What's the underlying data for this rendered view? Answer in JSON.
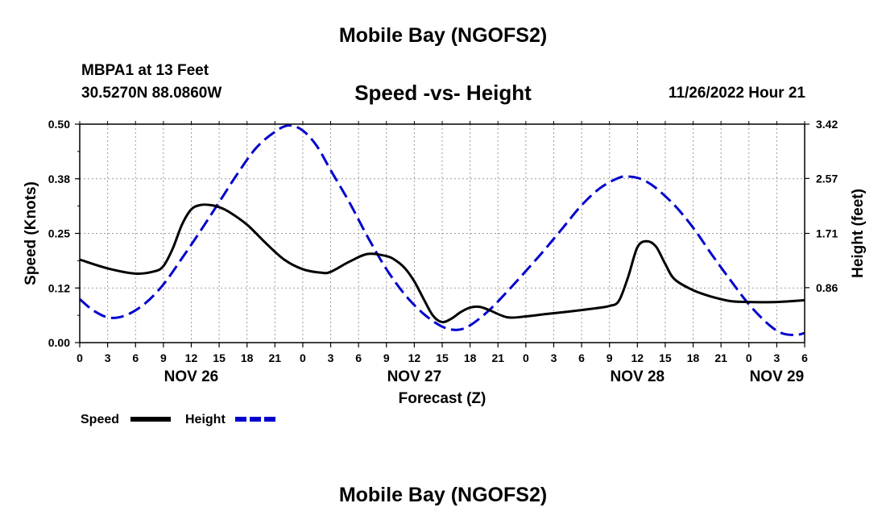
{
  "header": {
    "title": "Mobile Bay (NGOFS2)",
    "station": "MBPA1 at 13 Feet",
    "coords": "30.5270N  88.0860W",
    "subtitle": "Speed -vs- Height",
    "datetime": "11/26/2022 Hour 21"
  },
  "footer": {
    "title": "Mobile Bay (NGOFS2)"
  },
  "chart_data": {
    "type": "line",
    "title": "Speed -vs- Height",
    "xlabel": "Forecast (Z)",
    "ylabel": "Speed (Knots)",
    "y2label": "Height (feet)",
    "xlim": [
      0,
      78
    ],
    "ylim": [
      0,
      0.5
    ],
    "y2lim": [
      0,
      3.42
    ],
    "yticks": [
      0,
      0.125,
      0.25,
      0.375,
      0.5
    ],
    "ytick_labels": [
      "0.00",
      "0.12",
      "0.25",
      "0.38",
      "0.50"
    ],
    "y2ticks": [
      0.86,
      1.71,
      2.57,
      3.42
    ],
    "y2tick_labels": [
      "0.86",
      "1.71",
      "2.57",
      "3.42"
    ],
    "xticks": [
      0,
      3,
      6,
      9,
      12,
      15,
      18,
      21,
      24,
      27,
      30,
      33,
      36,
      39,
      42,
      45,
      48,
      51,
      54,
      57,
      60,
      63,
      66,
      69,
      72,
      75,
      78
    ],
    "xtick_labels": [
      "0",
      "3",
      "6",
      "9",
      "12",
      "15",
      "18",
      "21",
      "0",
      "3",
      "6",
      "9",
      "12",
      "15",
      "18",
      "21",
      "0",
      "3",
      "6",
      "9",
      "12",
      "15",
      "18",
      "21",
      "0",
      "3",
      "6"
    ],
    "date_labels": [
      {
        "x": 12,
        "label": "NOV 26"
      },
      {
        "x": 36,
        "label": "NOV 27"
      },
      {
        "x": 60,
        "label": "NOV 28"
      },
      {
        "x": 75,
        "label": "NOV 29"
      }
    ],
    "grid": true,
    "series": [
      {
        "name": "Speed",
        "axis": "left",
        "color": "#000000",
        "style": "solid",
        "x": [
          0,
          3,
          6,
          8,
          9,
          10,
          11,
          12,
          13,
          14,
          15,
          16,
          18,
          20,
          22,
          24,
          26,
          27,
          29,
          31,
          33,
          34,
          35,
          36,
          37,
          38,
          39,
          40,
          41,
          42,
          43,
          44,
          46,
          48,
          50,
          53,
          56,
          57,
          58,
          59,
          60,
          61,
          62,
          63,
          64,
          66,
          68,
          70,
          72,
          75,
          78
        ],
        "y": [
          0.19,
          0.17,
          0.158,
          0.163,
          0.175,
          0.215,
          0.27,
          0.305,
          0.315,
          0.315,
          0.31,
          0.3,
          0.27,
          0.228,
          0.19,
          0.168,
          0.16,
          0.162,
          0.185,
          0.203,
          0.198,
          0.188,
          0.17,
          0.14,
          0.1,
          0.062,
          0.047,
          0.055,
          0.07,
          0.08,
          0.082,
          0.075,
          0.058,
          0.06,
          0.065,
          0.072,
          0.08,
          0.084,
          0.095,
          0.15,
          0.218,
          0.232,
          0.22,
          0.18,
          0.145,
          0.12,
          0.105,
          0.095,
          0.093,
          0.093,
          0.097
        ]
      },
      {
        "name": "Height",
        "axis": "right",
        "color": "#0000cc",
        "style": "dashed",
        "x": [
          0,
          1.5,
          3.2,
          5,
          7,
          9,
          11,
          13,
          15,
          17,
          19,
          21,
          22.5,
          24,
          25.5,
          27,
          29,
          31,
          33,
          35,
          37,
          39,
          40.6,
          42,
          44,
          46,
          48,
          50,
          52,
          54,
          56,
          58,
          59,
          60,
          61,
          62,
          64,
          66,
          68,
          70,
          72,
          74,
          75.5,
          77,
          78
        ],
        "y": [
          0.68,
          0.5,
          0.39,
          0.43,
          0.61,
          0.91,
          1.32,
          1.75,
          2.2,
          2.65,
          3.05,
          3.3,
          3.4,
          3.32,
          3.08,
          2.7,
          2.2,
          1.65,
          1.15,
          0.75,
          0.45,
          0.25,
          0.2,
          0.27,
          0.5,
          0.8,
          1.12,
          1.45,
          1.8,
          2.15,
          2.42,
          2.58,
          2.6,
          2.58,
          2.52,
          2.42,
          2.15,
          1.8,
          1.38,
          0.98,
          0.6,
          0.3,
          0.15,
          0.12,
          0.15
        ]
      }
    ]
  }
}
